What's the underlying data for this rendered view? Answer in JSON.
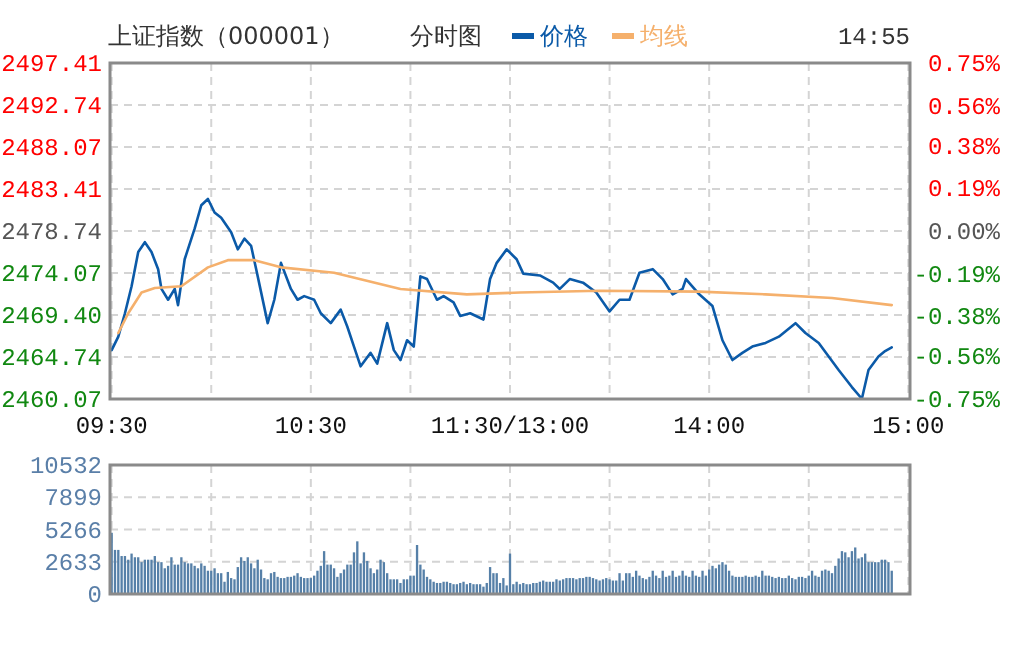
{
  "chart_data": [
    {
      "type": "line",
      "title": "上证指数（000001）",
      "subtitle": "分时图",
      "annotations": [
        "14:55"
      ],
      "legend": "top",
      "grid": true,
      "categories": [
        "09:30",
        null,
        null,
        null,
        null,
        null,
        null,
        null,
        null,
        null,
        null,
        null,
        null,
        null,
        null,
        null,
        null,
        null,
        null,
        null,
        null,
        null,
        null,
        null,
        null,
        null,
        null,
        null,
        null,
        null,
        null,
        null,
        null,
        null,
        null,
        null,
        null,
        null,
        null,
        null,
        null,
        null,
        null,
        null,
        null,
        null,
        null,
        null,
        null,
        null,
        null,
        null,
        null,
        null,
        null,
        null,
        null,
        null,
        null,
        null,
        "10:30",
        null,
        null,
        null,
        null,
        null,
        null,
        null,
        null,
        null,
        null,
        null,
        null,
        null,
        null,
        null,
        null,
        null,
        null,
        null,
        null,
        null,
        null,
        null,
        null,
        null,
        null,
        null,
        null,
        null,
        null,
        null,
        null,
        null,
        null,
        null,
        null,
        null,
        null,
        null,
        null,
        null,
        null,
        null,
        null,
        null,
        null,
        null,
        null,
        null,
        null,
        null,
        null,
        null,
        null,
        null,
        null,
        null,
        null,
        null,
        "11:30/13:00",
        null,
        null,
        null,
        null,
        null,
        null,
        null,
        null,
        null,
        null,
        null,
        null,
        null,
        null,
        null,
        null,
        null,
        null,
        null,
        null,
        null,
        null,
        null,
        null,
        null,
        null,
        null,
        null,
        null,
        null,
        null,
        null,
        null,
        null,
        null,
        null,
        null,
        null,
        null,
        null,
        null,
        null,
        null,
        null,
        null,
        null,
        null,
        null,
        null,
        null,
        null,
        null,
        null,
        null,
        null,
        null,
        null,
        null,
        null,
        "14:00",
        null,
        null,
        null,
        null,
        null,
        null,
        null,
        null,
        null,
        null,
        null,
        null,
        null,
        null,
        null,
        null,
        null,
        null,
        null,
        null,
        null,
        null,
        null,
        null,
        null,
        null,
        null,
        null,
        null,
        null,
        null,
        null,
        null,
        null,
        null,
        null,
        null,
        null,
        null,
        null,
        null,
        null,
        null,
        null,
        null,
        null,
        null,
        null,
        null,
        null,
        null,
        null,
        null,
        null,
        null,
        null,
        null,
        null,
        null,
        "15:00"
      ],
      "ylim": [
        2460.07,
        2497.41
      ],
      "yticks": [
        2460.07,
        2464.74,
        {
          "value": 2469.4,
          "label": "2469.40"
        },
        2474.07,
        2478.74,
        2483.41,
        2488.07,
        2492.74,
        2497.41
      ],
      "y2lim": [
        -0.75,
        0.75
      ],
      "y2ticks": [
        {
          "value": -0.75,
          "label": "-0.75%"
        },
        {
          "value": -0.56,
          "label": "-0.56%"
        },
        {
          "value": -0.38,
          "label": "-0.38%"
        },
        {
          "value": -0.19,
          "label": "-0.19%"
        },
        {
          "value": 0,
          "label": "0.00%"
        },
        {
          "value": 0.19,
          "label": "0.19%"
        },
        {
          "value": 0.38,
          "label": "0.38%"
        },
        {
          "value": 0.56,
          "label": "0.56%"
        },
        {
          "value": 0.75,
          "label": "0.75%"
        }
      ],
      "series": [
        {
          "name": "价格",
          "color": "#0b5aa8",
          "values": [
            2465.5,
            null,
            2467.0,
            null,
            2469.6,
            null,
            2472.6,
            null,
            2476.4,
            null,
            2477.5,
            null,
            2476.4,
            null,
            2474.5,
            2472.3,
            null,
            2471.1,
            null,
            2472.3,
            2470.5,
            2473.0,
            2475.6,
            null,
            null,
            2479.0,
            null,
            2481.6,
            null,
            2482.3,
            null,
            2480.8,
            null,
            2480.2,
            null,
            null,
            2478.6,
            null,
            2476.7,
            null,
            2477.9,
            null,
            2477.1,
            null,
            2473.7,
            null,
            null,
            2468.5,
            null,
            2471.1,
            null,
            2475.2,
            null,
            null,
            2472.3,
            null,
            2471.1,
            null,
            2471.5,
            null,
            null,
            2471.1,
            null,
            2469.6,
            null,
            null,
            2468.5,
            null,
            null,
            2470.0,
            null,
            2468.1,
            null,
            2465.9,
            null,
            2463.7,
            null,
            null,
            2465.2,
            null,
            2464.0,
            null,
            null,
            2468.5,
            null,
            2465.5,
            null,
            2464.4,
            null,
            2466.6,
            null,
            2465.9,
            null,
            2473.7,
            null,
            2473.4,
            null,
            null,
            2471.1,
            null,
            2471.5,
            null,
            null,
            2470.8,
            null,
            2469.3,
            null,
            null,
            2469.6,
            null,
            null,
            null,
            2468.9,
            null,
            2473.4,
            null,
            2475.2,
            null,
            null,
            2476.7,
            null,
            null,
            2475.6,
            null,
            2474.0,
            null,
            null,
            null,
            null,
            2473.8,
            null,
            null,
            null,
            2473.0,
            null,
            2472.3,
            null,
            null,
            2473.4,
            null,
            null,
            null,
            2473.0,
            null,
            null,
            null,
            2471.9,
            null,
            null,
            null,
            2469.8,
            null,
            null,
            2471.1,
            null,
            null,
            2471.1,
            null,
            null,
            2474.1,
            null,
            null,
            null,
            2474.5,
            null,
            null,
            2473.4,
            null,
            null,
            2471.7,
            null,
            null,
            2472.3,
            2473.4,
            null,
            null,
            null,
            2471.7,
            null,
            null,
            null,
            2470.4,
            null,
            null,
            2466.6,
            null,
            null,
            2464.4,
            null,
            null,
            2465.2,
            null,
            null,
            2465.9,
            null,
            null,
            null,
            2466.3,
            null,
            null,
            null,
            2467.0,
            null,
            null,
            null,
            null,
            2468.5,
            null,
            null,
            2467.4,
            null,
            null,
            null,
            2466.3,
            null,
            null,
            2464.8,
            null,
            null,
            2463.3,
            null,
            null,
            null,
            2461.4,
            null,
            null,
            2460.1,
            null,
            2463.3,
            null,
            null,
            2464.8,
            null,
            2465.4,
            null,
            2465.8,
            null,
            null,
            null,
            null,
            null
          ]
        },
        {
          "name": "均线",
          "color": "#f5b06c",
          "values": [
            null,
            null,
            2467.4,
            null,
            null,
            2469.6,
            null,
            null,
            null,
            2471.9,
            null,
            null,
            null,
            2472.4,
            null,
            null,
            null,
            null,
            null,
            null,
            null,
            2472.6,
            null,
            null,
            null,
            null,
            null,
            null,
            null,
            2474.7,
            null,
            null,
            null,
            null,
            null,
            2475.5,
            null,
            null,
            null,
            null,
            null,
            null,
            null,
            2475.5,
            null,
            null,
            null,
            null,
            null,
            null,
            null,
            2474.7,
            null,
            null,
            null,
            null,
            null,
            null,
            null,
            null,
            null,
            null,
            null,
            null,
            null,
            null,
            null,
            2474.1,
            null,
            null,
            null,
            null,
            null,
            null,
            null,
            null,
            null,
            null,
            null,
            null,
            null,
            null,
            null,
            null,
            null,
            null,
            null,
            2472.3,
            null,
            null,
            null,
            null,
            null,
            null,
            null,
            null,
            null,
            null,
            null,
            null,
            null,
            null,
            null,
            null,
            null,
            null,
            null,
            2471.7,
            null,
            null,
            null,
            null,
            null,
            null,
            null,
            null,
            null,
            null,
            null,
            null,
            null,
            null,
            null,
            2471.9,
            null,
            null,
            null,
            null,
            null,
            null,
            null,
            null,
            null,
            null,
            null,
            null,
            null,
            null,
            null,
            null,
            null,
            null,
            null,
            null,
            null,
            null,
            null,
            2472.1,
            null,
            null,
            null,
            null,
            null,
            null,
            null,
            null,
            null,
            null,
            null,
            null,
            null,
            null,
            null,
            null,
            null,
            null,
            null,
            null,
            null,
            null,
            null,
            null,
            null,
            null,
            null,
            null,
            null,
            2472.0,
            null,
            null,
            null,
            null,
            null,
            null,
            null,
            null,
            null,
            null,
            null,
            null,
            null,
            null,
            null,
            null,
            null,
            null,
            null,
            2471.7,
            null,
            null,
            null,
            null,
            null,
            null,
            null,
            null,
            null,
            null,
            null,
            null,
            null,
            null,
            null,
            null,
            null,
            null,
            null,
            2471.3,
            null,
            null,
            null,
            null,
            null,
            null,
            null,
            null,
            null,
            null,
            null,
            null,
            null,
            null,
            null,
            null,
            null,
            2470.5,
            null,
            null,
            null,
            null,
            null
          ]
        }
      ]
    },
    {
      "type": "bar",
      "grid": true,
      "tick_labels": "y",
      "categories": [
        null,
        null,
        null,
        null,
        null,
        null,
        null,
        null,
        null,
        null,
        null,
        null,
        null,
        null,
        null,
        null,
        null,
        null,
        null,
        null,
        null,
        null,
        null,
        null,
        null,
        null,
        null,
        null,
        null,
        null,
        null,
        null,
        null,
        null,
        null,
        null,
        null,
        null,
        null,
        null,
        null,
        null,
        null,
        null,
        null,
        null,
        null,
        null,
        null,
        null,
        null,
        null,
        null,
        null,
        null,
        null,
        null,
        null,
        null,
        null,
        null,
        null,
        null,
        null,
        null,
        null,
        null,
        null,
        null,
        null,
        null,
        null,
        null,
        null,
        null,
        null,
        null,
        null,
        null,
        null,
        null,
        null,
        null,
        null,
        null,
        null,
        null,
        null,
        null,
        null,
        null,
        null,
        null,
        null,
        null,
        null,
        null,
        null,
        null,
        null,
        null,
        null,
        null,
        null,
        null,
        null,
        null,
        null,
        null,
        null,
        null,
        null,
        null,
        null,
        null,
        null,
        null,
        null,
        null,
        null,
        null,
        null,
        null,
        null,
        null,
        null,
        null,
        null,
        null,
        null,
        null,
        null,
        null,
        null,
        null,
        null,
        null,
        null,
        null,
        null,
        null,
        null,
        null,
        null,
        null,
        null,
        null,
        null,
        null,
        null,
        null,
        null,
        null,
        null,
        null,
        null,
        null,
        null,
        null,
        null,
        null,
        null,
        null,
        null,
        null,
        null,
        null,
        null,
        null,
        null,
        null,
        null,
        null,
        null,
        null,
        null,
        null,
        null,
        null,
        null,
        null,
        null,
        null,
        null,
        null,
        null,
        null,
        null,
        null,
        null,
        null,
        null,
        null,
        null,
        null,
        null,
        null,
        null,
        null,
        null,
        null,
        null,
        null,
        null,
        null,
        null,
        null,
        null,
        null,
        null,
        null,
        null,
        null,
        null,
        null,
        null,
        null,
        null,
        null,
        null,
        null,
        null,
        null,
        null,
        null,
        null,
        null,
        null,
        null,
        null,
        null,
        null,
        null,
        null,
        null,
        null,
        null,
        null,
        null,
        null,
        null
      ],
      "ylim": [
        0,
        10532
      ],
      "yticks": [
        0,
        2633,
        5266,
        7899,
        10532
      ],
      "series": [
        {
          "color": "#5680a8",
          "values": [
            5000,
            3600,
            3600,
            3100,
            3100,
            2800,
            3300,
            3000,
            3000,
            2600,
            2800,
            2800,
            2800,
            3100,
            2600,
            2600,
            2100,
            2300,
            3000,
            2400,
            2400,
            3000,
            2600,
            2500,
            2500,
            2300,
            2100,
            2500,
            2300,
            1900,
            1900,
            2100,
            1700,
            1700,
            1000,
            1800,
            1300,
            1200,
            2200,
            3000,
            2700,
            3000,
            2500,
            2100,
            2800,
            2000,
            1300,
            1200,
            1700,
            1800,
            1400,
            1300,
            1300,
            1400,
            1400,
            1500,
            1700,
            1400,
            1300,
            1300,
            1300,
            1500,
            1900,
            2300,
            3500,
            2400,
            2400,
            2100,
            1400,
            1700,
            2000,
            2400,
            2400,
            3400,
            4300,
            2500,
            3400,
            2700,
            2100,
            1700,
            2000,
            2800,
            2600,
            1700,
            1200,
            1200,
            1200,
            900,
            1200,
            1200,
            1500,
            1500,
            4000,
            2400,
            2000,
            1400,
            1200,
            1000,
            900,
            900,
            1000,
            1000,
            900,
            800,
            800,
            900,
            1000,
            800,
            900,
            800,
            800,
            800,
            600,
            900,
            2200,
            1700,
            1700,
            900,
            1300,
            700,
            3300,
            800,
            1000,
            800,
            900,
            800,
            800,
            900,
            900,
            1000,
            1100,
            1000,
            1000,
            1000,
            1200,
            1100,
            1200,
            1300,
            1300,
            1300,
            1200,
            1300,
            1300,
            1400,
            1400,
            1300,
            1200,
            1100,
            1200,
            1300,
            1200,
            1100,
            1100,
            1700,
            1100,
            1700,
            1700,
            1400,
            1900,
            1500,
            1300,
            1200,
            1400,
            1900,
            1500,
            1300,
            1900,
            1400,
            1500,
            1900,
            1400,
            1500,
            1900,
            1500,
            1400,
            1900,
            1500,
            1400,
            1900,
            1500,
            2000,
            2300,
            2100,
            2400,
            2600,
            2400,
            1900,
            1500,
            1400,
            1400,
            1400,
            1500,
            1400,
            1400,
            1500,
            1400,
            1900,
            1500,
            1500,
            1400,
            1300,
            1400,
            1300,
            1300,
            1500,
            1300,
            1200,
            1400,
            1400,
            1300,
            1500,
            1900,
            1500,
            1400,
            1900,
            2000,
            1900,
            1700,
            2300,
            2900,
            3500,
            3400,
            3000,
            3500,
            3800,
            2900,
            3000,
            3300,
            2600,
            2600,
            2600,
            2600,
            2800,
            2800,
            2600,
            1900,
            null,
            null,
            null,
            null,
            null
          ]
        }
      ]
    }
  ]
}
